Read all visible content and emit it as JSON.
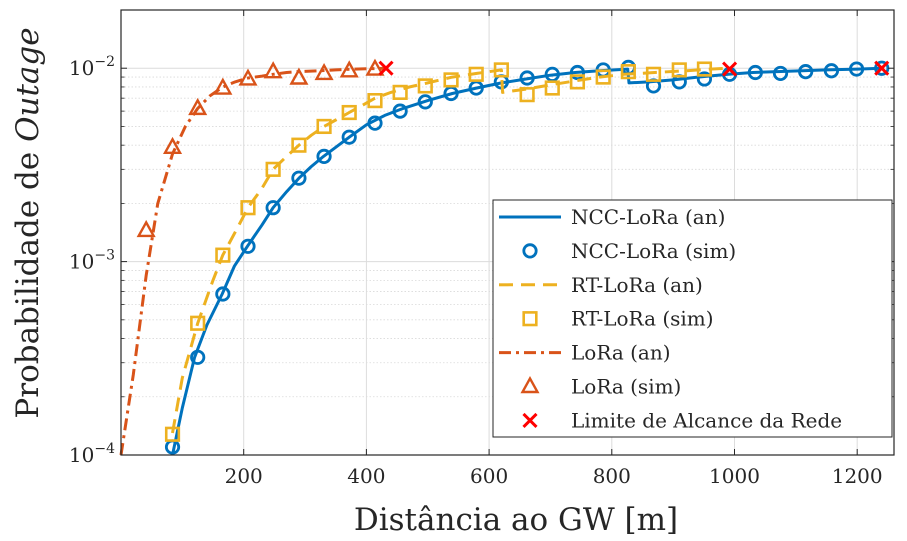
{
  "chart_data": {
    "type": "line",
    "ylabel_prefix": "Probabilidade de ",
    "ylabel_italic": "Outage",
    "xlabel": "Distância ao GW [m]",
    "xlim": [
      0,
      1260
    ],
    "ylim": [
      0.0001,
      0.02
    ],
    "yscale": "log",
    "grid": true,
    "legend_position": "lower-right",
    "xticks": [
      200,
      400,
      600,
      800,
      1000,
      1200
    ],
    "xtick_labels": [
      "200",
      "400",
      "600",
      "800",
      "1000",
      "1200"
    ],
    "yticks": [
      0.0001,
      0.001,
      0.01
    ],
    "ytick_bases": [
      "10",
      "10",
      "10"
    ],
    "ytick_exps": [
      "−4",
      "−3",
      "−2"
    ],
    "colors": {
      "ncc": "#0072BD",
      "rt": "#EDB120",
      "lora": "#D95319",
      "limit": "#FF0000"
    },
    "series": [
      {
        "name": "NCC-LoRa (an)",
        "style": "solid",
        "color": "#0072BD",
        "x": [
          84,
          100,
          120,
          140,
          165,
          185,
          206,
          230,
          248,
          270,
          290,
          310,
          330,
          350,
          372,
          400,
          430,
          460,
          500,
          540,
          580,
          620,
          660,
          700,
          740,
          780,
          826,
          828,
          860,
          900,
          940,
          990,
          1030,
          1070,
          1110,
          1150,
          1200,
          1240
        ],
        "y": [
          0.0001,
          0.000175,
          0.00032,
          0.00047,
          0.00068,
          0.00095,
          0.0012,
          0.00155,
          0.0019,
          0.0023,
          0.0027,
          0.0031,
          0.0035,
          0.0039,
          0.0044,
          0.0051,
          0.0057,
          0.0062,
          0.0068,
          0.0074,
          0.0079,
          0.0084,
          0.0088,
          0.0092,
          0.0095,
          0.0097,
          0.0099,
          0.0084,
          0.0085,
          0.0087,
          0.009,
          0.0093,
          0.0095,
          0.0096,
          0.0097,
          0.0098,
          0.0099,
          0.01
        ]
      },
      {
        "name": "NCC-LoRa (sim)",
        "style": "circle",
        "color": "#0072BD",
        "x": [
          84,
          125,
          166,
          207,
          248,
          290,
          331,
          372,
          414,
          455,
          496,
          538,
          579,
          620,
          662,
          703,
          744,
          786,
          827,
          868,
          910,
          951,
          992,
          1034,
          1075,
          1116,
          1158,
          1199,
          1240
        ],
        "y": [
          0.00011,
          0.00032,
          0.00068,
          0.0012,
          0.0019,
          0.0027,
          0.0035,
          0.0044,
          0.0052,
          0.006,
          0.0067,
          0.0074,
          0.0079,
          0.0085,
          0.0089,
          0.0093,
          0.0095,
          0.0098,
          0.0101,
          0.0081,
          0.0085,
          0.0088,
          0.0093,
          0.0095,
          0.0094,
          0.0096,
          0.0097,
          0.0099,
          0.01
        ]
      },
      {
        "name": "RT-LoRa (an)",
        "style": "dashed",
        "color": "#EDB120",
        "x": [
          84,
          100,
          125,
          150,
          166,
          190,
          207,
          230,
          248,
          270,
          290,
          310,
          331,
          350,
          372,
          400,
          414,
          440,
          470,
          500,
          540,
          580,
          620,
          622,
          660,
          700,
          740,
          780,
          820,
          870,
          920,
          960,
          992
        ],
        "y": [
          0.00013,
          0.00025,
          0.00048,
          0.0008,
          0.00108,
          0.0015,
          0.0019,
          0.0024,
          0.003,
          0.0035,
          0.004,
          0.0045,
          0.005,
          0.0054,
          0.0059,
          0.0066,
          0.007,
          0.0075,
          0.008,
          0.0084,
          0.009,
          0.0094,
          0.0098,
          0.0075,
          0.0078,
          0.0082,
          0.0086,
          0.009,
          0.0093,
          0.0095,
          0.0097,
          0.0099,
          0.01
        ]
      },
      {
        "name": "RT-LoRa (sim)",
        "style": "square",
        "color": "#EDB120",
        "x": [
          84,
          125,
          166,
          207,
          248,
          290,
          331,
          372,
          414,
          455,
          496,
          538,
          579,
          620,
          662,
          703,
          744,
          786,
          827,
          868,
          910,
          951
        ],
        "y": [
          0.000128,
          0.00048,
          0.00108,
          0.0019,
          0.003,
          0.004,
          0.005,
          0.0059,
          0.0068,
          0.0075,
          0.0081,
          0.0087,
          0.0093,
          0.0098,
          0.0073,
          0.0079,
          0.0085,
          0.009,
          0.0096,
          0.0093,
          0.0098,
          0.0099
        ]
      },
      {
        "name": "LoRa (an)",
        "style": "dashdot",
        "color": "#D95319",
        "x": [
          0,
          20,
          41,
          60,
          84,
          105,
          125,
          145,
          166,
          186,
          207,
          230,
          248,
          270,
          290,
          320,
          350,
          380,
          414,
          432
        ],
        "y": [
          0.0001,
          0.00026,
          0.00085,
          0.002,
          0.0036,
          0.005,
          0.0062,
          0.0072,
          0.008,
          0.0085,
          0.0089,
          0.0091,
          0.0093,
          0.0095,
          0.0096,
          0.0097,
          0.0098,
          0.0099,
          0.00995,
          0.01
        ]
      },
      {
        "name": "LoRa (sim)",
        "style": "triangle",
        "color": "#D95319",
        "x": [
          41,
          84,
          125,
          166,
          207,
          248,
          290,
          331,
          372,
          414
        ],
        "y": [
          0.00145,
          0.0039,
          0.0062,
          0.0079,
          0.0088,
          0.0096,
          0.0089,
          0.0094,
          0.0097,
          0.0099
        ]
      },
      {
        "name": "Limite de Alcance da Rede",
        "style": "x",
        "color": "#FF0000",
        "x": [
          432,
          992,
          1240
        ],
        "y": [
          0.01,
          0.0099,
          0.01
        ]
      }
    ],
    "legend_order": [
      0,
      1,
      2,
      3,
      4,
      5,
      6
    ]
  }
}
